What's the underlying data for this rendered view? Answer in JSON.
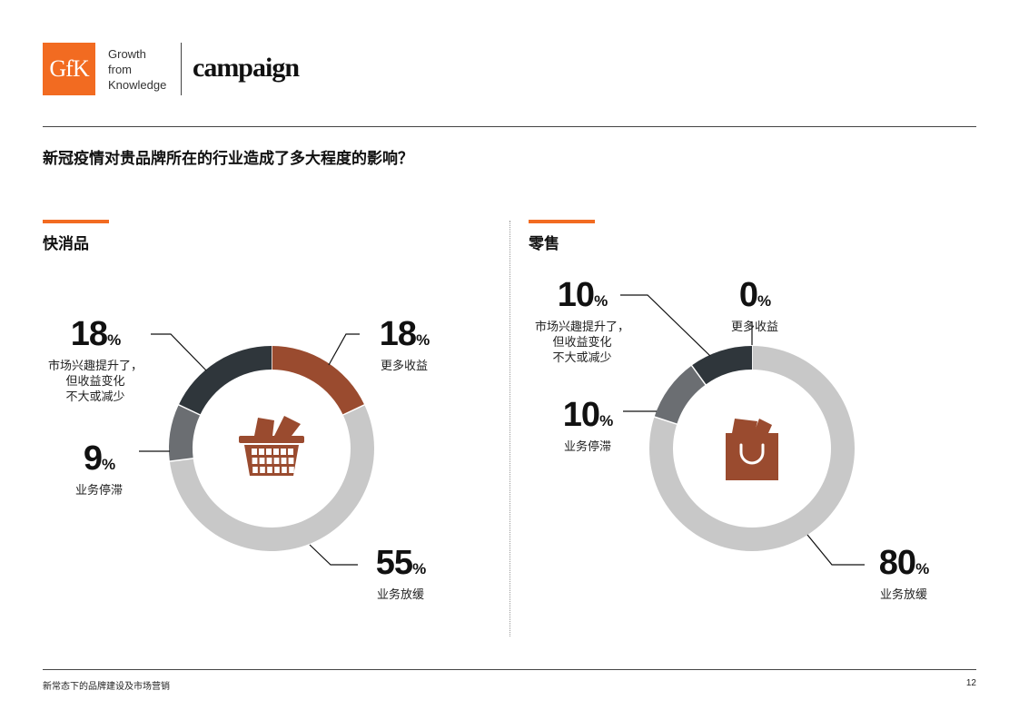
{
  "header": {
    "logo_text": "GfK",
    "tagline": [
      "Growth",
      "from",
      "Knowledge"
    ],
    "partner_logo_text": "campaign",
    "brand_color": "#f26b21"
  },
  "question": "新冠疫情对贵品牌所在的行业造成了多大程度的影响？",
  "colors": {
    "more_revenue": "#9a4b2f",
    "no_change": "#2f363b",
    "stagnant": "#6b6e72",
    "slowdown": "#c8c8c8",
    "icon": "#9a4b2f"
  },
  "chart_data": [
    {
      "type": "pie",
      "subtype": "donut",
      "title": "快消品",
      "icon": "basket-icon",
      "segments": [
        {
          "key": "more_revenue",
          "value": 18,
          "label_value": "18",
          "label": [
            "更多收益"
          ]
        },
        {
          "key": "slowdown",
          "value": 55,
          "label_value": "55",
          "label": [
            "业务放缓"
          ]
        },
        {
          "key": "stagnant",
          "value": 9,
          "label_value": "9",
          "label": [
            "业务停滞"
          ]
        },
        {
          "key": "no_change",
          "value": 18,
          "label_value": "18",
          "label": [
            "市场兴趣提升了，",
            "但收益变化",
            "不大或减少"
          ]
        }
      ]
    },
    {
      "type": "pie",
      "subtype": "donut",
      "title": "零售",
      "icon": "shopping-bag-icon",
      "segments": [
        {
          "key": "more_revenue",
          "value": 0,
          "label_value": "0",
          "label": [
            "更多收益"
          ]
        },
        {
          "key": "slowdown",
          "value": 80,
          "label_value": "80",
          "label": [
            "业务放缓"
          ]
        },
        {
          "key": "stagnant",
          "value": 10,
          "label_value": "10",
          "label": [
            "业务停滞"
          ]
        },
        {
          "key": "no_change",
          "value": 10,
          "label_value": "10",
          "label": [
            "市场兴趣提升了，",
            "但收益变化",
            "不大或减少"
          ]
        }
      ]
    }
  ],
  "percent_sign": "%",
  "footer": {
    "text": "新常态下的品牌建设及市场营销",
    "page_number": "12"
  }
}
